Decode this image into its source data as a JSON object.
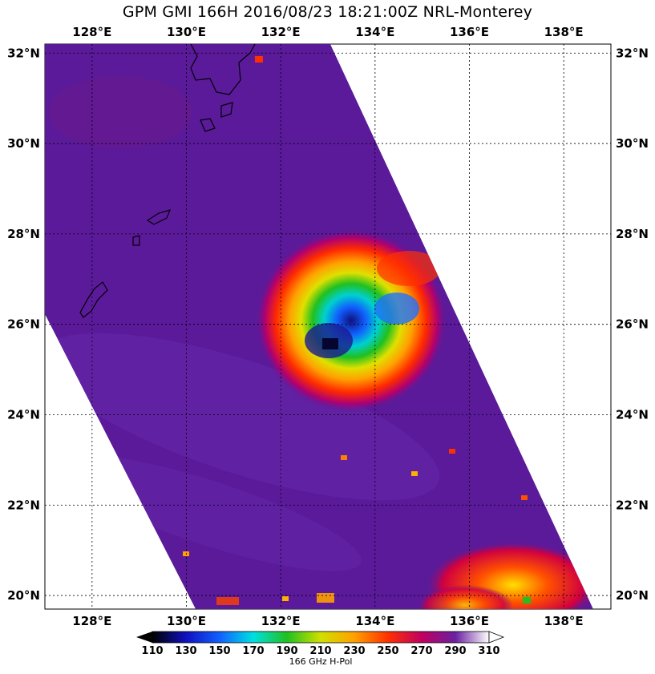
{
  "title": "GPM GMI 166H 2016/08/23 18:21:00Z NRL-Monterey",
  "map": {
    "lon_min": 127.0,
    "lon_max": 139.0,
    "lat_min": 19.7,
    "lat_max": 32.2,
    "lon_ticks": [
      {
        "value": 128,
        "label": "128°E"
      },
      {
        "value": 130,
        "label": "130°E"
      },
      {
        "value": 132,
        "label": "132°E"
      },
      {
        "value": 134,
        "label": "134°E"
      },
      {
        "value": 136,
        "label": "136°E"
      },
      {
        "value": 138,
        "label": "138°E"
      }
    ],
    "lat_ticks": [
      {
        "value": 32,
        "label": "32°N"
      },
      {
        "value": 30,
        "label": "30°N"
      },
      {
        "value": 28,
        "label": "28°N"
      },
      {
        "value": 26,
        "label": "26°N"
      },
      {
        "value": 24,
        "label": "24°N"
      },
      {
        "value": 22,
        "label": "22°N"
      },
      {
        "value": 20,
        "label": "20°N"
      }
    ],
    "storm_center": {
      "lon": 133.2,
      "lat": 25.8
    },
    "background_color": "#5a1a9a"
  },
  "colorbar": {
    "label": "166 GHz H-Pol",
    "ticks": [
      "110",
      "130",
      "150",
      "170",
      "190",
      "210",
      "230",
      "250",
      "270",
      "290",
      "310"
    ],
    "colors": [
      "#000000",
      "#1010c0",
      "#1060ff",
      "#00e0e0",
      "#20c020",
      "#d0e000",
      "#ffa000",
      "#ff3000",
      "#c00060",
      "#6a20a0",
      "#ffffff"
    ]
  }
}
